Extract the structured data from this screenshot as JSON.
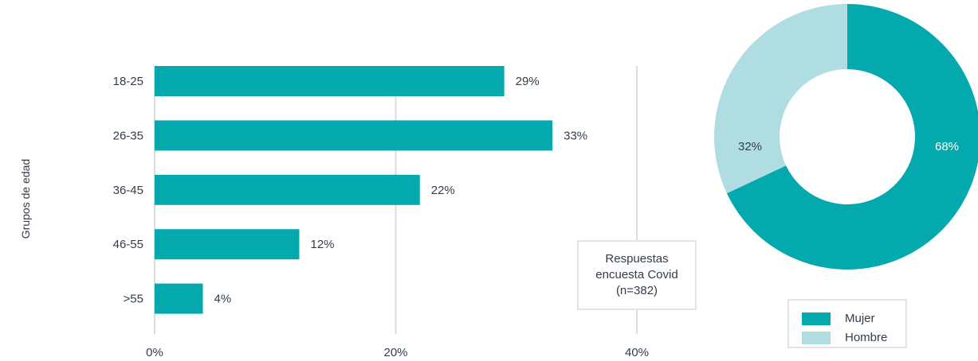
{
  "chart_data": [
    {
      "type": "bar",
      "orientation": "horizontal",
      "categories": [
        "18-25",
        "26-35",
        "36-45",
        "46-55",
        ">55"
      ],
      "values": [
        29,
        33,
        22,
        12,
        4
      ],
      "data_labels": [
        "29%",
        "33%",
        "22%",
        "12%",
        "4%"
      ],
      "ylabel": "Grupos de edad",
      "xlim": [
        0,
        40
      ],
      "x_ticks": [
        "0%",
        "20%",
        "40%"
      ],
      "grid": true,
      "bar_color": "#04a9ad",
      "annotation": [
        "Respuestas",
        "encuesta Covid",
        "(n=382)"
      ]
    },
    {
      "type": "pie",
      "donut": true,
      "categories": [
        "Mujer",
        "Hombre"
      ],
      "values": [
        68,
        32
      ],
      "data_labels": [
        "68%",
        "32%"
      ],
      "colors": [
        "#04a9ad",
        "#afdde1"
      ],
      "legend_position": "bottom-right"
    }
  ]
}
